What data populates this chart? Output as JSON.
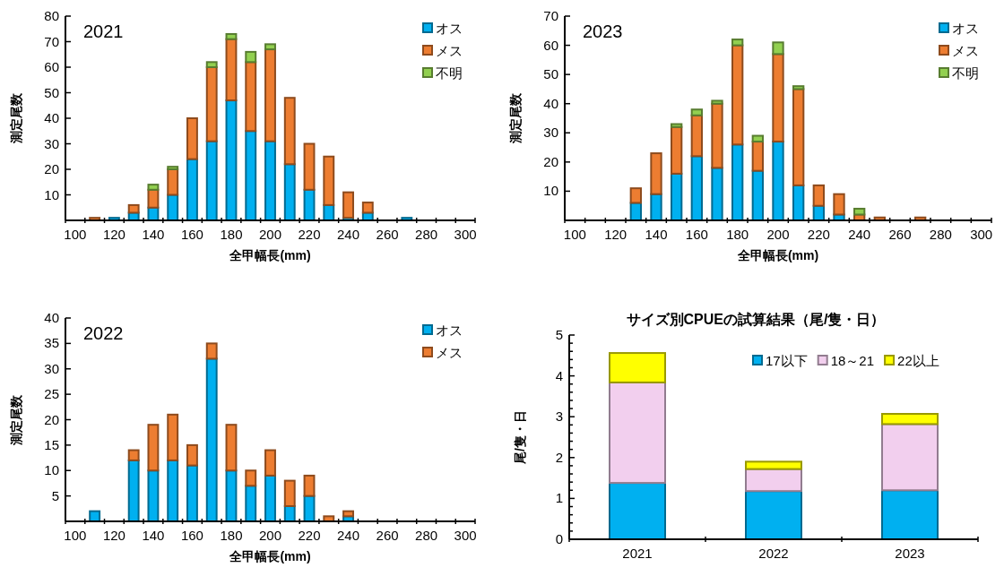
{
  "chart_data": [
    {
      "type": "bar",
      "stacked": true,
      "annotations": [
        "2021"
      ],
      "xlabel": "全甲幅長(mm)",
      "ylabel": "測定尾数",
      "categories": [
        "100",
        null,
        "120",
        null,
        "140",
        null,
        "160",
        null,
        "180",
        null,
        "200",
        null,
        "220",
        null,
        "240",
        null,
        "260",
        null,
        "280",
        null,
        "300"
      ],
      "series": [
        {
          "name": "オス",
          "color": "#00b0f0",
          "values": [
            0,
            0,
            1,
            3,
            5,
            10,
            24,
            31,
            47,
            35,
            31,
            22,
            12,
            6,
            1,
            3,
            0,
            1,
            0,
            0,
            0
          ]
        },
        {
          "name": "メス",
          "color": "#ed7d31",
          "values": [
            0,
            1,
            0,
            3,
            7,
            10,
            16,
            29,
            24,
            27,
            36,
            26,
            18,
            19,
            10,
            4,
            0,
            0,
            0,
            0,
            0
          ]
        },
        {
          "name": "不明",
          "color": "#92d050",
          "values": [
            0,
            0,
            0,
            0,
            2,
            1,
            0,
            2,
            2,
            4,
            2,
            0,
            0,
            0,
            0,
            0,
            0,
            0,
            0,
            0,
            0
          ]
        }
      ],
      "ylim": [
        0,
        80
      ],
      "yticks": [
        10,
        20,
        30,
        40,
        50,
        60,
        70,
        80
      ],
      "legend": "top right"
    },
    {
      "type": "bar",
      "stacked": true,
      "annotations": [
        "2023"
      ],
      "xlabel": "全甲幅長(mm)",
      "ylabel": "測定尾数",
      "categories": [
        "100",
        null,
        "120",
        null,
        "140",
        null,
        "160",
        null,
        "180",
        null,
        "200",
        null,
        "220",
        null,
        "240",
        null,
        "260",
        null,
        "280",
        null,
        "300"
      ],
      "series": [
        {
          "name": "オス",
          "color": "#00b0f0",
          "values": [
            0,
            0,
            0,
            6,
            9,
            16,
            22,
            18,
            26,
            17,
            27,
            12,
            5,
            2,
            0,
            0,
            0,
            0,
            0,
            0,
            0
          ]
        },
        {
          "name": "メス",
          "color": "#ed7d31",
          "values": [
            0,
            0,
            0,
            5,
            14,
            16,
            14,
            22,
            34,
            10,
            30,
            33,
            7,
            7,
            2,
            1,
            0,
            1,
            0,
            0,
            0
          ]
        },
        {
          "name": "不明",
          "color": "#92d050",
          "values": [
            0,
            0,
            0,
            0,
            0,
            1,
            2,
            1,
            2,
            2,
            4,
            1,
            0,
            0,
            2,
            0,
            0,
            0,
            0,
            0,
            0
          ]
        }
      ],
      "ylim": [
        0,
        70
      ],
      "yticks": [
        10,
        20,
        30,
        40,
        50,
        60,
        70
      ],
      "legend": "top right"
    },
    {
      "type": "bar",
      "stacked": true,
      "annotations": [
        "2022"
      ],
      "xlabel": "全甲幅長(mm)",
      "ylabel": "測定尾数",
      "categories": [
        "100",
        null,
        "120",
        null,
        "140",
        null,
        "160",
        null,
        "180",
        null,
        "200",
        null,
        "220",
        null,
        "240",
        null,
        "260",
        null,
        "280",
        null,
        "300"
      ],
      "series": [
        {
          "name": "オス",
          "color": "#00b0f0",
          "values": [
            0,
            2,
            0,
            12,
            10,
            12,
            11,
            32,
            10,
            7,
            9,
            3,
            5,
            0,
            1,
            0,
            0,
            0,
            0,
            0,
            0
          ]
        },
        {
          "name": "メス",
          "color": "#ed7d31",
          "values": [
            0,
            0,
            0,
            2,
            9,
            9,
            4,
            3,
            9,
            3,
            5,
            5,
            4,
            1,
            1,
            0,
            0,
            0,
            0,
            0,
            0
          ]
        }
      ],
      "ylim": [
        0,
        40
      ],
      "yticks": [
        5,
        10,
        15,
        20,
        25,
        30,
        35,
        40
      ],
      "legend": "top right"
    },
    {
      "type": "bar",
      "stacked": true,
      "title": "サイズ別CPUEの試算結果（尾/隻・日）",
      "ylabel": "尾/隻・日",
      "categories": [
        "2021",
        "2022",
        "2023"
      ],
      "series": [
        {
          "name": "17以下",
          "color": "#00b0f0",
          "values": [
            1.38,
            1.18,
            1.2
          ]
        },
        {
          "name": "18～21",
          "color": "#f2cfee",
          "values": [
            2.46,
            0.54,
            1.62
          ]
        },
        {
          "name": "22以上",
          "color": "#ffff00",
          "values": [
            0.72,
            0.18,
            0.25
          ]
        }
      ],
      "ylim": [
        0,
        5
      ],
      "yticks": [
        0,
        {
          "value": 0.2,
          "label": null
        },
        {
          "value": 0.4,
          "label": null
        },
        {
          "value": 0.6,
          "label": null
        },
        {
          "value": 0.8,
          "label": null
        },
        1,
        {
          "value": 1.2,
          "label": null
        },
        {
          "value": 1.4,
          "label": null
        },
        {
          "value": 1.6,
          "label": null
        },
        {
          "value": 1.8,
          "label": null
        },
        2,
        {
          "value": 2.2,
          "label": null
        },
        {
          "value": 2.4,
          "label": null
        },
        {
          "value": 2.6,
          "label": null
        },
        {
          "value": 2.8,
          "label": null
        },
        3,
        {
          "value": 3.2,
          "label": null
        },
        {
          "value": 3.4,
          "label": null
        },
        {
          "value": 3.6,
          "label": null
        },
        {
          "value": 3.8,
          "label": null
        },
        4,
        {
          "value": 4.2,
          "label": null
        },
        {
          "value": 4.4,
          "label": null
        },
        {
          "value": 4.6,
          "label": null
        },
        {
          "value": 4.8,
          "label": null
        },
        5
      ],
      "legend": "top"
    }
  ]
}
